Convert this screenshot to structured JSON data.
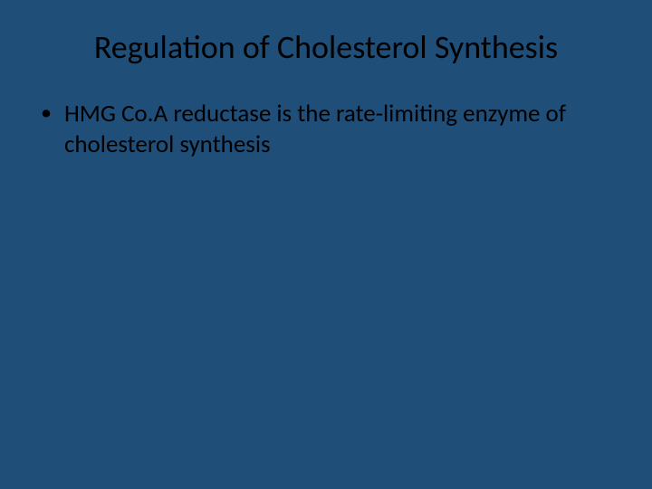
{
  "slide": {
    "title": "Regulation of Cholesterol Synthesis",
    "background_color": "#1f4e79",
    "title_color": "#000000",
    "title_fontsize": 36,
    "body_color": "#000000",
    "body_fontsize": 27,
    "bullets": [
      {
        "marker": "•",
        "text": "HMG Co.A reductase is the rate-limiting enzyme of cholesterol synthesis"
      }
    ]
  }
}
